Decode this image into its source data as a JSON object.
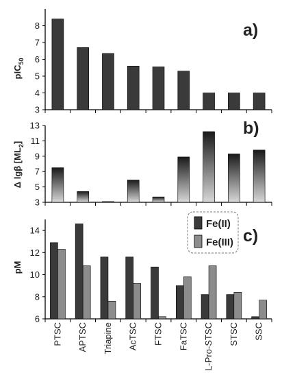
{
  "chart_data": [
    {
      "panel": "a)",
      "type": "bar",
      "ylabel": "pIC",
      "ylabel_sub": "50",
      "ylim": [
        3,
        9
      ],
      "yticks": [
        3,
        4,
        5,
        6,
        7,
        8
      ],
      "categories": [
        "PTSC",
        "APTSC",
        "Triapine",
        "AcTSC",
        "FTSC",
        "FaTSC",
        "L-Pro-STSC",
        "STSC",
        "SSC"
      ],
      "values": [
        8.4,
        6.7,
        6.35,
        5.6,
        5.55,
        5.3,
        4.0,
        4.0,
        4.0
      ],
      "color": "#3a3a3a",
      "grid": false
    },
    {
      "panel": "b)",
      "type": "bar",
      "ylabel": "Δ lgβ [ML",
      "ylabel_sub": "2",
      "ylabel_suffix": "]",
      "ylim": [
        3,
        13
      ],
      "yticks": [
        3,
        5,
        7,
        9,
        11,
        13
      ],
      "categories": [
        "PTSC",
        "APTSC",
        "Triapine",
        "AcTSC",
        "FTSC",
        "FaTSC",
        "L-Pro-STSC",
        "STSC",
        "SSC"
      ],
      "values": [
        7.5,
        4.4,
        3.1,
        5.9,
        3.7,
        8.9,
        12.2,
        9.3,
        9.8
      ],
      "color_top": "#1a1a1a",
      "color_bottom": "#d8d8d8",
      "grid": false
    },
    {
      "panel": "c)",
      "type": "bar",
      "ylabel": "pM",
      "ylim": [
        6,
        15
      ],
      "yticks": [
        6,
        8,
        10,
        12,
        14
      ],
      "categories": [
        "PTSC",
        "APTSC",
        "Triapine",
        "AcTSC",
        "FTSC",
        "FaTSC",
        "L-Pro-STSC",
        "STSC",
        "SSC"
      ],
      "series": [
        {
          "name": "Fe(II)",
          "values": [
            12.9,
            14.6,
            11.6,
            11.6,
            10.7,
            9.0,
            8.2,
            8.2,
            6.2
          ],
          "color": "#3a3a3a"
        },
        {
          "name": "Fe(III)",
          "values": [
            12.3,
            10.8,
            7.6,
            9.2,
            6.2,
            9.8,
            10.8,
            8.4,
            7.7
          ],
          "color": "#8c8c8c"
        }
      ],
      "legend_placement": "top-right",
      "grid": false
    }
  ]
}
